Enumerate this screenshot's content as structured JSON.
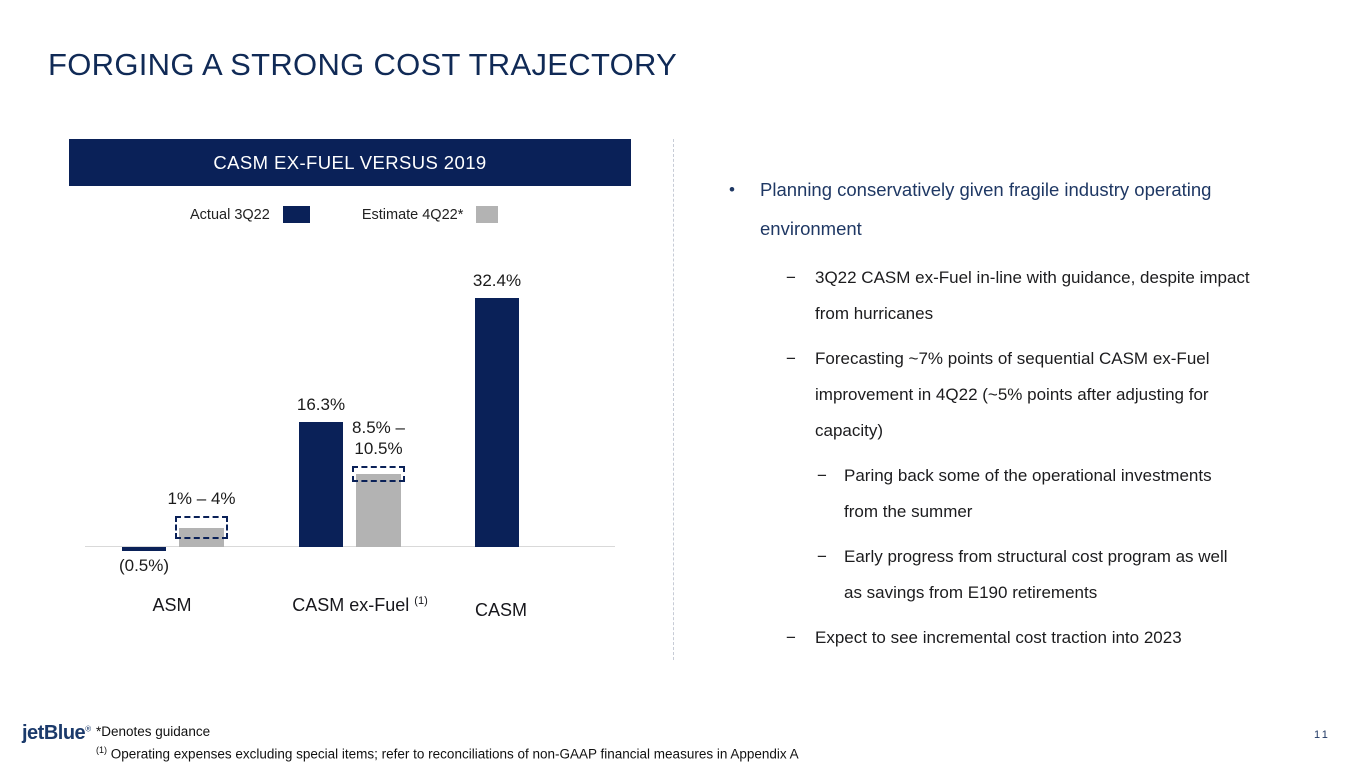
{
  "slide": {
    "title": "FORGING A STRONG COST TRAJECTORY",
    "page_number": "11"
  },
  "colors": {
    "navy": "#0a2158",
    "gray": "#b3b3b3",
    "title_navy": "#102a56",
    "bullet_navy": "#1f3864"
  },
  "chart": {
    "header": "CASM EX-FUEL VERSUS 2019",
    "legend": [
      {
        "label": "Actual 3Q22",
        "color": "#0a2158"
      },
      {
        "label": "Estimate 4Q22*",
        "color": "#b3b3b3"
      }
    ]
  },
  "chart_data": {
    "type": "bar",
    "title": "CASM EX-FUEL VERSUS 2019",
    "unit": "% versus 2019",
    "categories": [
      "ASM",
      "CASM ex-Fuel",
      "CASM"
    ],
    "category_superscripts": [
      "",
      "(1)",
      ""
    ],
    "series": [
      {
        "name": "Actual 3Q22",
        "type": "solid-bar",
        "color": "#0a2158",
        "values": [
          -0.5,
          16.3,
          32.4
        ],
        "labels": [
          "(0.5%)",
          "16.3%",
          "32.4%"
        ]
      },
      {
        "name": "Estimate 4Q22*",
        "type": "range-bar",
        "color": "#b3b3b3",
        "ranges": [
          [
            1,
            4
          ],
          [
            8.5,
            10.5
          ],
          null
        ],
        "labels": [
          "1% – 4%",
          "8.5% –\n10.5%",
          ""
        ]
      }
    ],
    "ylim": [
      -2,
      36
    ],
    "gridlines": false,
    "legend_position": "top"
  },
  "bullets": [
    {
      "level": 1,
      "text": "Planning conservatively given fragile industry operating environment"
    },
    {
      "level": 2,
      "text": "3Q22 CASM ex-Fuel in-line with guidance, despite impact from hurricanes"
    },
    {
      "level": 2,
      "text": "Forecasting ~7% points of sequential CASM ex-Fuel improvement in 4Q22 (~5% points after adjusting for capacity)"
    },
    {
      "level": 3,
      "text": "Paring back some of the operational investments from the summer"
    },
    {
      "level": 3,
      "text": "Early progress from structural cost program as well as savings from E190 retirements"
    },
    {
      "level": 2,
      "text": "Expect to see incremental cost traction into 2023"
    }
  ],
  "footer": {
    "logo_text": "jetBlue",
    "logo_reg": "®",
    "footnote_guidance": "*Denotes guidance",
    "footnote_marker": "(1)",
    "footnote_text": "Operating expenses excluding special items; refer to reconciliations of non-GAAP financial measures in Appendix A"
  }
}
